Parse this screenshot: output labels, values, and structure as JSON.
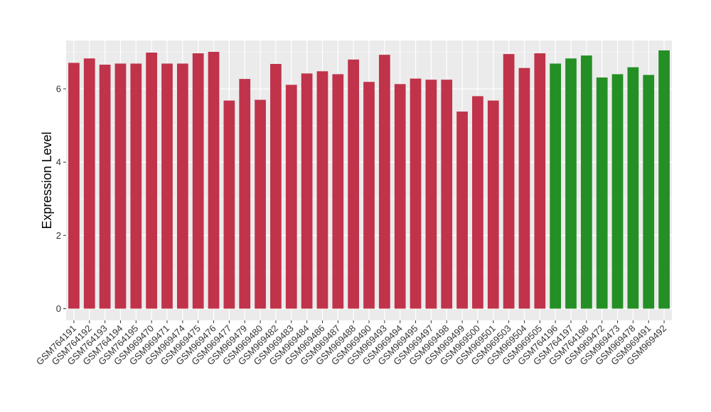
{
  "chart_data": {
    "type": "bar",
    "ylabel": "Expression Level",
    "xlabel": "",
    "title": "",
    "ylim": [
      -0.32,
      7.32
    ],
    "yticks": [
      0,
      2,
      4,
      6
    ],
    "grid": true,
    "legend": "none",
    "colors": {
      "group_a": "#c0334a",
      "group_b": "#248f24",
      "panel": "#ebebeb",
      "grid": "#ffffff"
    },
    "categories": [
      "GSM764191",
      "GSM764192",
      "GSM764193",
      "GSM764194",
      "GSM764195",
      "GSM969470",
      "GSM969471",
      "GSM969474",
      "GSM969475",
      "GSM969476",
      "GSM969477",
      "GSM969479",
      "GSM969480",
      "GSM969482",
      "GSM969483",
      "GSM969484",
      "GSM969486",
      "GSM969487",
      "GSM969488",
      "GSM969490",
      "GSM969493",
      "GSM969494",
      "GSM969495",
      "GSM969497",
      "GSM969498",
      "GSM969499",
      "GSM969500",
      "GSM969501",
      "GSM969503",
      "GSM969504",
      "GSM969505",
      "GSM764196",
      "GSM764197",
      "GSM764198",
      "GSM969472",
      "GSM969473",
      "GSM969478",
      "GSM969491",
      "GSM969492"
    ],
    "values": [
      6.71,
      6.83,
      6.66,
      6.69,
      6.69,
      6.99,
      6.69,
      6.69,
      6.97,
      7.01,
      5.68,
      6.27,
      5.7,
      6.68,
      6.11,
      6.42,
      6.48,
      6.4,
      6.8,
      6.19,
      6.93,
      6.13,
      6.28,
      6.25,
      6.25,
      5.38,
      5.8,
      5.68,
      6.95,
      6.57,
      6.97,
      6.69,
      6.83,
      6.91,
      6.31,
      6.4,
      6.59,
      6.38,
      7.05
    ],
    "groups": [
      "a",
      "a",
      "a",
      "a",
      "a",
      "a",
      "a",
      "a",
      "a",
      "a",
      "a",
      "a",
      "a",
      "a",
      "a",
      "a",
      "a",
      "a",
      "a",
      "a",
      "a",
      "a",
      "a",
      "a",
      "a",
      "a",
      "a",
      "a",
      "a",
      "a",
      "a",
      "b",
      "b",
      "b",
      "b",
      "b",
      "b",
      "b",
      "b"
    ]
  }
}
